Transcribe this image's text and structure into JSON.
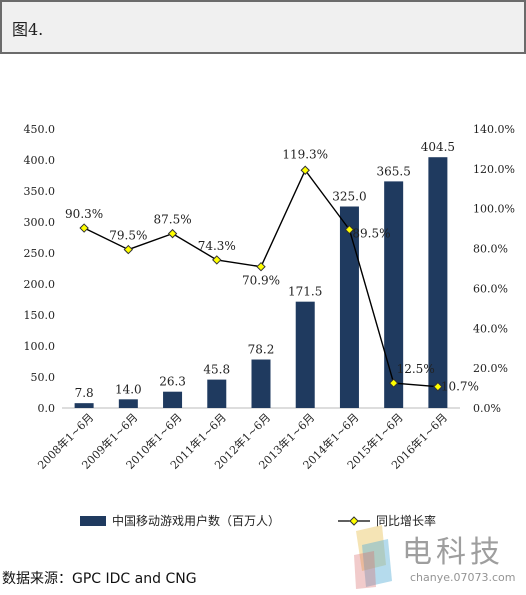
{
  "figure_label": "图4.",
  "source": "数据来源：GPC IDC and CNG",
  "watermark": {
    "name": "电科技",
    "url": "chanye.07073.com"
  },
  "colors": {
    "bar": "#1f3a5f",
    "line": "#000000",
    "marker": "#ffff00"
  },
  "chart_data": {
    "type": "bar",
    "categories": [
      "2008年1~6月",
      "2009年1~6月",
      "2010年1~6月",
      "2011年1~6月",
      "2012年1~6月",
      "2013年1~6月",
      "2014年1~6月",
      "2015年1~6月",
      "2016年1~6月"
    ],
    "series": [
      {
        "name": "中国移动游戏用户数（百万人）",
        "type": "bar",
        "axis": "left",
        "values": [
          7.8,
          14.0,
          26.3,
          45.8,
          78.2,
          171.5,
          325.0,
          365.5,
          404.5
        ],
        "labels": [
          "7.8",
          "14.0",
          "26.3",
          "45.8",
          "78.2",
          "171.5",
          "325.0",
          "365.5",
          "404.5"
        ]
      },
      {
        "name": "同比增长率",
        "type": "line",
        "axis": "right",
        "values": [
          90.3,
          79.5,
          87.5,
          74.3,
          70.9,
          119.3,
          89.5,
          12.5,
          10.7
        ],
        "labels": [
          "90.3%",
          "79.5%",
          "87.5%",
          "74.3%",
          "70.9%",
          "119.3%",
          "89.5%",
          "12.5%",
          "10.7%"
        ]
      }
    ],
    "y_left": {
      "range": [
        0,
        450
      ],
      "ticks": [
        "0.0",
        "50.0",
        "100.0",
        "150.0",
        "200.0",
        "250.0",
        "300.0",
        "350.0",
        "400.0",
        "450.0"
      ]
    },
    "y_right": {
      "range": [
        0,
        140
      ],
      "ticks": [
        "0.0%",
        "20.0%",
        "40.0%",
        "60.0%",
        "80.0%",
        "100.0%",
        "120.0%",
        "140.0%"
      ]
    },
    "grid": false,
    "legend_position": "bottom"
  }
}
